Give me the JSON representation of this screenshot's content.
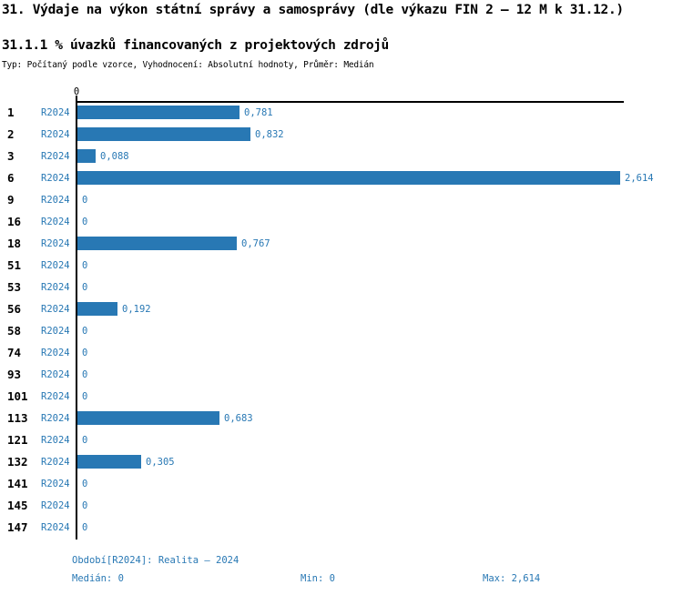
{
  "page": {
    "title": "31. Výdaje na výkon státní správy a samosprávy (dle výkazu FIN 2 – 12 M k 31.12.)",
    "subtitle": "31.1.1 % úvazků financovaných z projektových zdrojů",
    "meta": "Typ: Počítaný podle vzorce, Vyhodnocení: Absolutní hodnoty, Průměr: Medián"
  },
  "chart_data": {
    "type": "bar",
    "orientation": "horizontal",
    "title": "31.1.1 % úvazků financovaných z projektových zdrojů",
    "categories": [
      "1",
      "2",
      "3",
      "6",
      "9",
      "16",
      "18",
      "51",
      "53",
      "56",
      "58",
      "74",
      "93",
      "101",
      "113",
      "121",
      "132",
      "141",
      "145",
      "147"
    ],
    "series": [
      {
        "name": "R2024",
        "values": [
          0.781,
          0.832,
          0.088,
          2.614,
          0,
          0,
          0.767,
          0,
          0,
          0.192,
          0,
          0,
          0,
          0,
          0.683,
          0,
          0.305,
          0,
          0,
          0
        ],
        "value_labels": [
          "0,781",
          "0,832",
          "0,088",
          "2,614",
          "0",
          "0",
          "0,767",
          "0",
          "0",
          "0,192",
          "0",
          "0",
          "0",
          "0",
          "0,683",
          "0",
          "0,305",
          "0",
          "0",
          "0"
        ]
      }
    ],
    "xlabel": "",
    "ylabel": "",
    "xlim": [
      0,
      2.64
    ],
    "x_tick_labels": [
      "0"
    ],
    "grid": false,
    "legend_position": "none",
    "summary": {
      "median": 0,
      "min": 0,
      "max": 2.614
    }
  },
  "axis": {
    "zero_tick_label": "0"
  },
  "footer": {
    "period": "Období[R2024]: Realita – 2024",
    "median": "Medián: 0",
    "min": "Min: 0",
    "max": "Max: 2,614"
  },
  "colors": {
    "bar": "#2878B4",
    "accent_text": "#2878B4",
    "axis": "#000000",
    "background": "#FFFFFF"
  }
}
